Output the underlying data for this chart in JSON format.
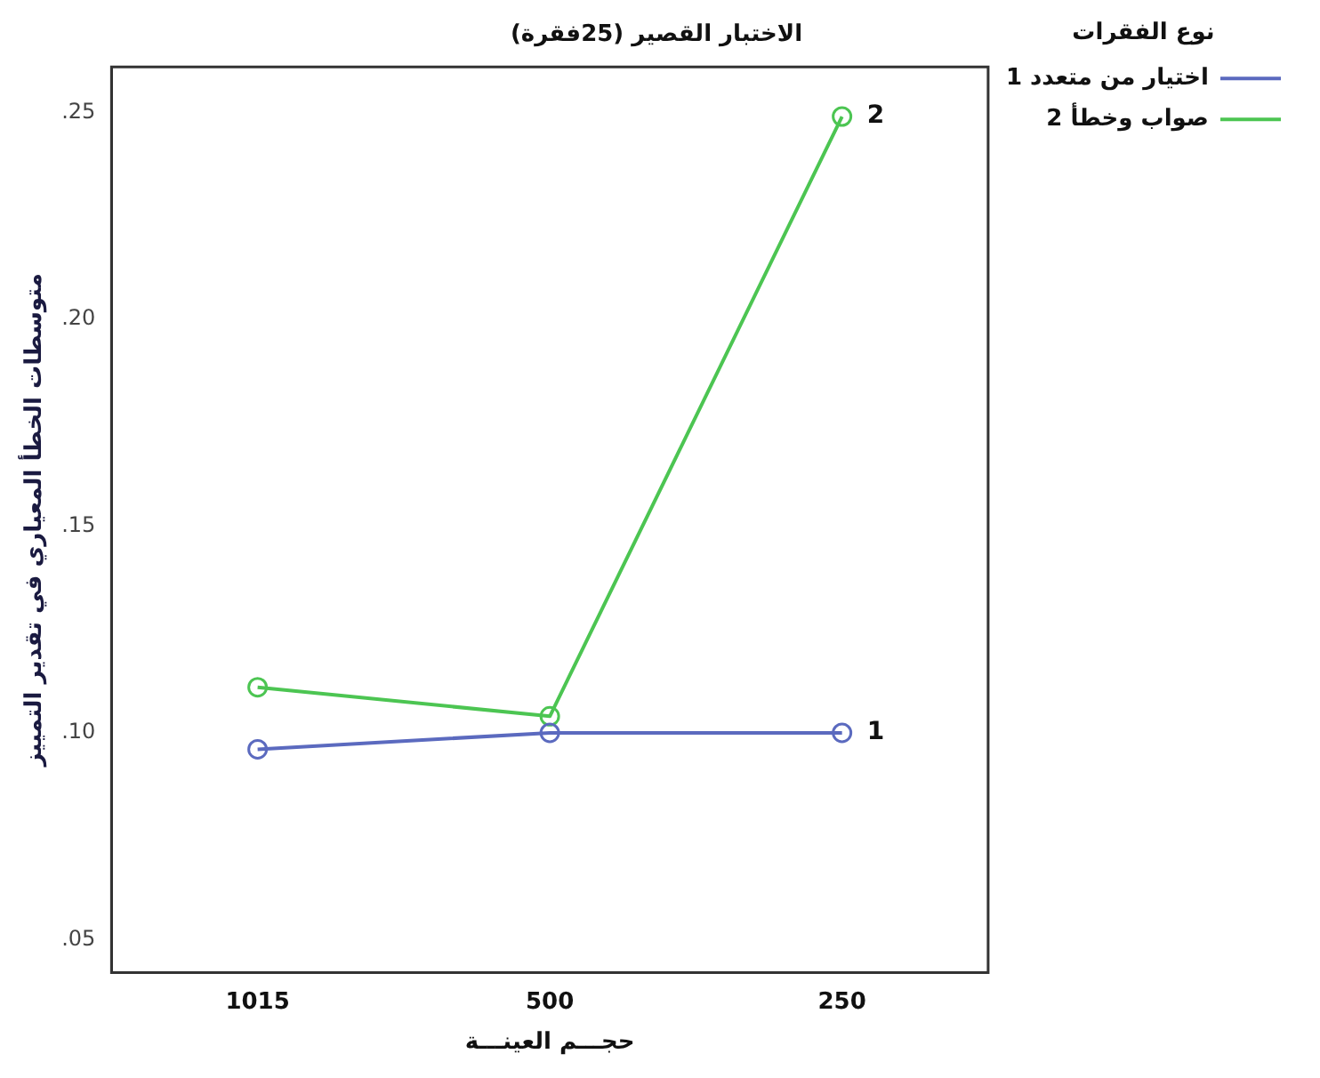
{
  "chart_data": {
    "type": "line",
    "title": "الاختبار القصير (25فقرة)",
    "xlabel": "حجـــم العينـــة",
    "ylabel": "متوسطات الخطأ المعياري في تقدير التمييز",
    "legend_title": "نوع الفقرات",
    "categories": [
      "1015",
      "500",
      "250"
    ],
    "series": [
      {
        "name": "اختيار من متعدد 1",
        "color": "#5b6abf",
        "values": [
          0.096,
          0.1,
          0.1
        ]
      },
      {
        "name": "صواب وخطأ 2",
        "color": "#4cc552",
        "values": [
          0.111,
          0.104,
          0.249
        ]
      }
    ],
    "annotations": [
      {
        "text": "1",
        "x": "250",
        "y": 0.1
      },
      {
        "text": "2",
        "x": "250",
        "y": 0.249
      }
    ],
    "ylim": [
      0.042,
      0.261
    ],
    "yticks": [
      {
        "value": 0.05,
        "label": ".05"
      },
      {
        "value": 0.1,
        "label": ".10"
      },
      {
        "value": 0.15,
        "label": ".15"
      },
      {
        "value": 0.2,
        "label": ".20"
      },
      {
        "value": 0.25,
        "label": ".25"
      }
    ],
    "grid": false,
    "legend": "top right",
    "marker": "circle",
    "line_style": "solid"
  }
}
